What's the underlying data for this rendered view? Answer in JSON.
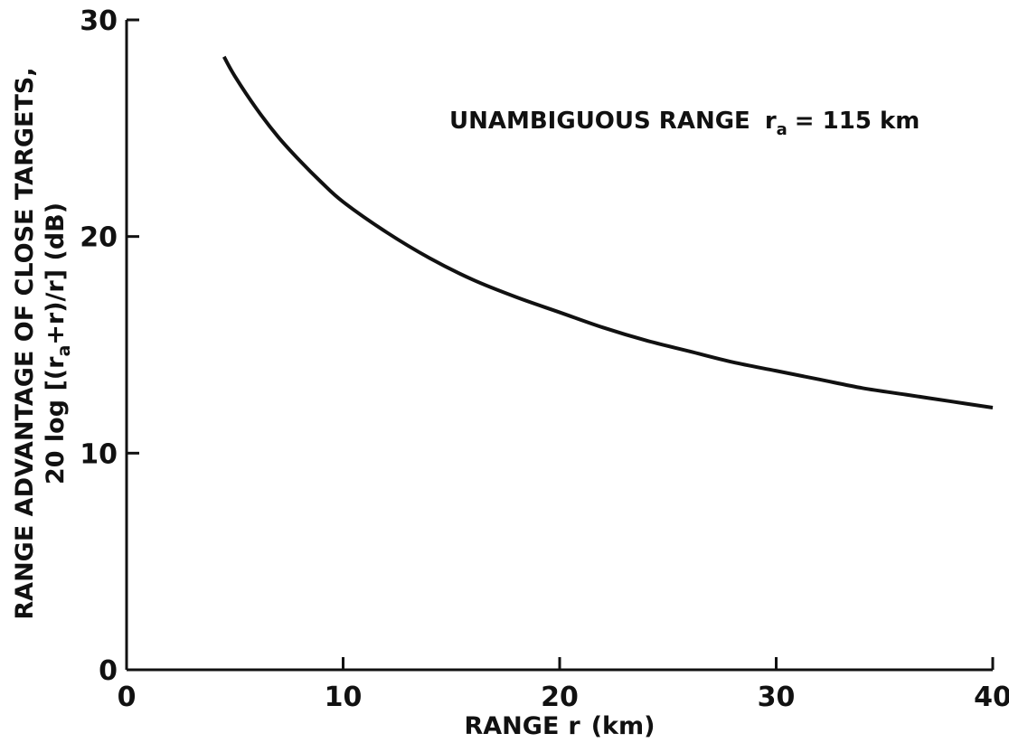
{
  "chart_data": {
    "type": "line",
    "xlabel": {
      "prefix": "RANGE",
      "var": "r",
      "unit": "(km)"
    },
    "ylabel": {
      "line1": "RANGE ADVANTAGE OF CLOSE TARGETS,",
      "line2_a": "20 log [(r",
      "line2_sub": "a",
      "line2_b": "+r)/r] (dB)"
    },
    "annotation": {
      "text": "UNAMBIGUOUS RANGE",
      "var": "r",
      "sub": "a",
      "value": "= 115 km"
    },
    "xlim": [
      0,
      40
    ],
    "ylim": [
      0,
      30
    ],
    "xticks": [
      "0",
      "10",
      "20",
      "30",
      "40"
    ],
    "yticks": [
      "0",
      "10",
      "20",
      "30"
    ],
    "series": [
      {
        "x": [
          4.5,
          5,
          6,
          7,
          8,
          9,
          10,
          12,
          14,
          16,
          18,
          20,
          22,
          24,
          26,
          28,
          30,
          32,
          34,
          36,
          38,
          40
        ],
        "y": [
          28.3,
          27.4,
          25.9,
          24.6,
          23.5,
          22.5,
          21.6,
          20.2,
          19.0,
          18.0,
          17.2,
          16.5,
          15.8,
          15.2,
          14.7,
          14.2,
          13.8,
          13.4,
          13.0,
          12.7,
          12.4,
          12.1
        ]
      }
    ]
  }
}
